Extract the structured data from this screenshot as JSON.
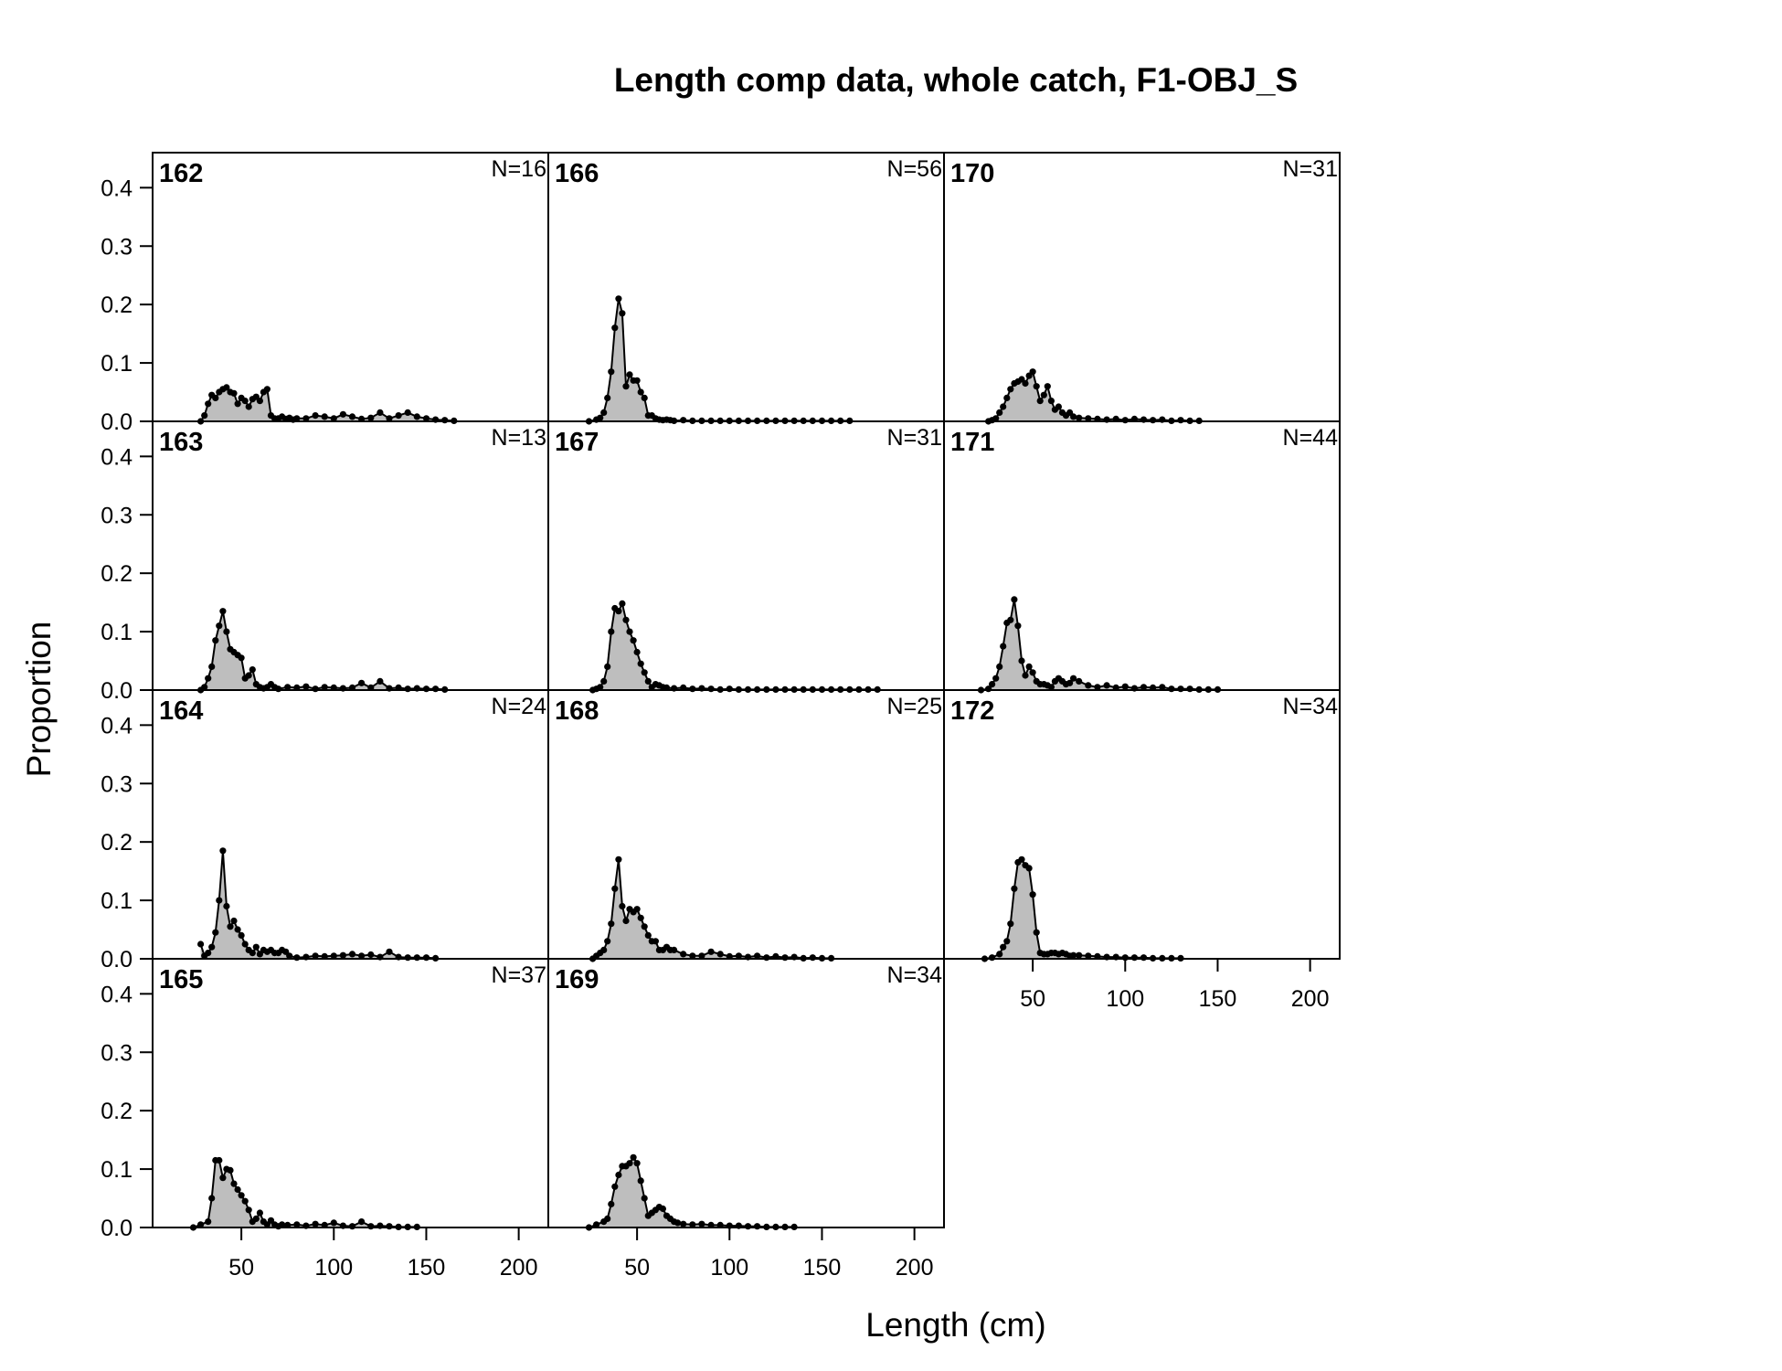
{
  "chart_data": {
    "type": "area",
    "title": "Length comp data, whole catch, F1-OBJ_S",
    "xlabel": "Length (cm)",
    "ylabel": "Proportion",
    "xlim": [
      2,
      216
    ],
    "ylim": [
      0,
      0.46
    ],
    "x_ticks": [
      50,
      100,
      150,
      200
    ],
    "y_ticks": [
      0.0,
      0.1,
      0.2,
      0.3,
      0.4
    ],
    "x_tick_labels": [
      "50",
      "100",
      "150",
      "200"
    ],
    "y_tick_labels": [
      "0.0",
      "0.1",
      "0.2",
      "0.3",
      "0.4"
    ],
    "layout": {
      "columns": 3,
      "rows": 4
    },
    "colors": {
      "fill": "#bebebe",
      "line": "#000000",
      "point": "#000000"
    },
    "grid": false,
    "panels": [
      {
        "label": "162",
        "n_label": "N=16",
        "x": [
          28,
          30,
          32,
          34,
          36,
          38,
          40,
          42,
          44,
          46,
          48,
          50,
          52,
          54,
          56,
          58,
          60,
          62,
          64,
          66,
          68,
          70,
          72,
          74,
          76,
          78,
          80,
          85,
          90,
          95,
          100,
          105,
          110,
          115,
          120,
          125,
          130,
          135,
          140,
          145,
          150,
          155,
          160,
          165
        ],
        "values": [
          0,
          0.01,
          0.03,
          0.045,
          0.04,
          0.05,
          0.055,
          0.058,
          0.05,
          0.048,
          0.03,
          0.04,
          0.035,
          0.025,
          0.038,
          0.042,
          0.035,
          0.05,
          0.055,
          0.01,
          0.005,
          0.005,
          0.008,
          0.004,
          0.006,
          0.003,
          0.005,
          0.005,
          0.01,
          0.008,
          0.005,
          0.012,
          0.008,
          0.004,
          0.006,
          0.015,
          0.005,
          0.01,
          0.015,
          0.008,
          0.005,
          0.003,
          0.002,
          0.001
        ]
      },
      {
        "label": "163",
        "n_label": "N=13",
        "x": [
          28,
          30,
          32,
          34,
          36,
          38,
          40,
          42,
          44,
          46,
          48,
          50,
          52,
          54,
          56,
          58,
          60,
          62,
          64,
          66,
          68,
          70,
          75,
          80,
          85,
          90,
          95,
          100,
          105,
          110,
          115,
          120,
          125,
          130,
          135,
          140,
          145,
          150,
          155,
          160
        ],
        "values": [
          0,
          0.005,
          0.02,
          0.04,
          0.085,
          0.11,
          0.135,
          0.1,
          0.07,
          0.065,
          0.06,
          0.055,
          0.02,
          0.025,
          0.035,
          0.01,
          0.005,
          0.003,
          0.005,
          0.01,
          0.005,
          0.002,
          0.005,
          0.004,
          0.006,
          0.002,
          0.005,
          0.004,
          0.003,
          0.004,
          0.012,
          0.004,
          0.015,
          0.003,
          0.004,
          0.002,
          0.003,
          0.002,
          0.002,
          0.001
        ]
      },
      {
        "label": "164",
        "n_label": "N=24",
        "x": [
          28,
          30,
          32,
          34,
          36,
          38,
          40,
          42,
          44,
          46,
          48,
          50,
          52,
          54,
          56,
          58,
          60,
          62,
          64,
          66,
          68,
          70,
          72,
          74,
          76,
          80,
          85,
          90,
          95,
          100,
          105,
          110,
          115,
          120,
          125,
          130,
          135,
          140,
          145,
          150,
          155
        ],
        "values": [
          0.025,
          0.005,
          0.01,
          0.02,
          0.045,
          0.1,
          0.185,
          0.09,
          0.055,
          0.065,
          0.05,
          0.04,
          0.025,
          0.015,
          0.01,
          0.02,
          0.008,
          0.015,
          0.012,
          0.015,
          0.01,
          0.01,
          0.015,
          0.012,
          0.005,
          0.002,
          0.003,
          0.005,
          0.004,
          0.005,
          0.006,
          0.008,
          0.005,
          0.007,
          0.003,
          0.012,
          0.003,
          0.002,
          0.002,
          0.002,
          0.001
        ]
      },
      {
        "label": "165",
        "n_label": "N=37",
        "x": [
          24,
          28,
          32,
          34,
          36,
          38,
          40,
          42,
          44,
          46,
          48,
          50,
          52,
          54,
          56,
          58,
          60,
          62,
          64,
          66,
          68,
          70,
          72,
          75,
          80,
          85,
          90,
          95,
          100,
          105,
          110,
          115,
          120,
          125,
          130,
          135,
          140,
          145
        ],
        "values": [
          0,
          0.005,
          0.01,
          0.05,
          0.115,
          0.115,
          0.085,
          0.1,
          0.098,
          0.075,
          0.065,
          0.055,
          0.045,
          0.03,
          0.01,
          0.015,
          0.025,
          0.01,
          0.005,
          0.012,
          0.005,
          0.002,
          0.005,
          0.004,
          0.005,
          0.003,
          0.006,
          0.004,
          0.008,
          0.003,
          0.002,
          0.01,
          0.002,
          0.003,
          0.002,
          0.001,
          0.001,
          0.001
        ]
      },
      {
        "label": "166",
        "n_label": "N=56",
        "x": [
          24,
          28,
          30,
          32,
          34,
          36,
          38,
          40,
          42,
          44,
          46,
          48,
          50,
          52,
          54,
          56,
          58,
          60,
          62,
          64,
          66,
          68,
          70,
          75,
          80,
          85,
          90,
          95,
          100,
          105,
          110,
          115,
          120,
          125,
          130,
          135,
          140,
          145,
          150,
          155,
          160,
          165
        ],
        "values": [
          0,
          0.003,
          0.006,
          0.015,
          0.04,
          0.085,
          0.16,
          0.21,
          0.185,
          0.06,
          0.08,
          0.07,
          0.07,
          0.05,
          0.04,
          0.01,
          0.01,
          0.005,
          0.003,
          0.002,
          0.003,
          0.002,
          0.001,
          0.002,
          0.001,
          0.001,
          0.001,
          0.001,
          0.001,
          0.001,
          0.001,
          0.001,
          0.001,
          0.001,
          0.001,
          0.001,
          0.001,
          0.001,
          0.001,
          0.001,
          0.001,
          0.001
        ]
      },
      {
        "label": "167",
        "n_label": "N=31",
        "x": [
          26,
          28,
          30,
          32,
          34,
          36,
          38,
          40,
          42,
          44,
          46,
          48,
          50,
          52,
          54,
          56,
          58,
          60,
          62,
          64,
          66,
          70,
          75,
          80,
          85,
          90,
          95,
          100,
          105,
          110,
          115,
          120,
          125,
          130,
          135,
          140,
          145,
          150,
          155,
          160,
          165,
          170,
          175,
          180
        ],
        "values": [
          0,
          0.002,
          0.005,
          0.015,
          0.04,
          0.1,
          0.14,
          0.135,
          0.148,
          0.12,
          0.1,
          0.085,
          0.065,
          0.045,
          0.03,
          0.015,
          0.005,
          0.01,
          0.008,
          0.005,
          0.004,
          0.003,
          0.004,
          0.002,
          0.003,
          0.002,
          0.001,
          0.002,
          0.001,
          0.001,
          0.001,
          0.001,
          0.001,
          0.001,
          0.001,
          0.001,
          0.001,
          0.001,
          0.001,
          0.001,
          0.001,
          0.001,
          0.001,
          0.001
        ]
      },
      {
        "label": "168",
        "n_label": "N=25",
        "x": [
          26,
          28,
          30,
          32,
          34,
          36,
          38,
          40,
          42,
          44,
          46,
          48,
          50,
          52,
          54,
          56,
          58,
          60,
          62,
          64,
          66,
          68,
          70,
          75,
          80,
          85,
          90,
          95,
          100,
          105,
          110,
          115,
          120,
          125,
          130,
          135,
          140,
          145,
          150,
          155
        ],
        "values": [
          0,
          0.005,
          0.01,
          0.015,
          0.03,
          0.06,
          0.12,
          0.17,
          0.09,
          0.065,
          0.085,
          0.08,
          0.085,
          0.07,
          0.055,
          0.04,
          0.03,
          0.03,
          0.015,
          0.015,
          0.02,
          0.015,
          0.015,
          0.008,
          0.005,
          0.005,
          0.012,
          0.008,
          0.004,
          0.005,
          0.003,
          0.005,
          0.002,
          0.004,
          0.002,
          0.003,
          0.001,
          0.002,
          0.001,
          0.001
        ]
      },
      {
        "label": "169",
        "n_label": "N=34",
        "x": [
          24,
          28,
          32,
          34,
          36,
          38,
          40,
          42,
          44,
          46,
          48,
          50,
          52,
          54,
          56,
          58,
          60,
          62,
          64,
          66,
          68,
          70,
          72,
          75,
          80,
          85,
          90,
          95,
          100,
          105,
          110,
          115,
          120,
          125,
          130,
          135
        ],
        "values": [
          0,
          0.005,
          0.01,
          0.015,
          0.04,
          0.07,
          0.09,
          0.105,
          0.105,
          0.11,
          0.12,
          0.11,
          0.08,
          0.05,
          0.02,
          0.025,
          0.03,
          0.035,
          0.032,
          0.02,
          0.015,
          0.01,
          0.008,
          0.006,
          0.005,
          0.006,
          0.004,
          0.004,
          0.003,
          0.003,
          0.002,
          0.002,
          0.001,
          0.001,
          0.001,
          0.001
        ]
      },
      {
        "label": "170",
        "n_label": "N=31",
        "x": [
          26,
          28,
          30,
          32,
          34,
          36,
          38,
          40,
          42,
          44,
          46,
          48,
          50,
          52,
          54,
          56,
          58,
          60,
          62,
          64,
          66,
          68,
          70,
          72,
          75,
          80,
          85,
          90,
          95,
          100,
          105,
          110,
          115,
          120,
          125,
          130,
          135,
          140
        ],
        "values": [
          0,
          0.002,
          0.005,
          0.015,
          0.025,
          0.04,
          0.055,
          0.065,
          0.068,
          0.072,
          0.065,
          0.078,
          0.085,
          0.06,
          0.035,
          0.045,
          0.06,
          0.035,
          0.02,
          0.025,
          0.015,
          0.01,
          0.015,
          0.008,
          0.006,
          0.005,
          0.004,
          0.003,
          0.004,
          0.002,
          0.004,
          0.003,
          0.002,
          0.003,
          0.001,
          0.002,
          0.001,
          0.001
        ]
      },
      {
        "label": "171",
        "n_label": "N=44",
        "x": [
          22,
          26,
          28,
          30,
          32,
          34,
          36,
          38,
          40,
          42,
          44,
          46,
          48,
          50,
          52,
          54,
          56,
          58,
          60,
          62,
          64,
          66,
          68,
          70,
          72,
          75,
          80,
          85,
          90,
          95,
          100,
          105,
          110,
          115,
          120,
          125,
          130,
          135,
          140,
          145,
          150
        ],
        "values": [
          0,
          0.002,
          0.01,
          0.02,
          0.04,
          0.075,
          0.115,
          0.12,
          0.155,
          0.11,
          0.05,
          0.025,
          0.04,
          0.03,
          0.015,
          0.01,
          0.01,
          0.008,
          0.005,
          0.015,
          0.02,
          0.015,
          0.01,
          0.012,
          0.02,
          0.015,
          0.008,
          0.005,
          0.008,
          0.004,
          0.006,
          0.003,
          0.005,
          0.004,
          0.005,
          0.002,
          0.002,
          0.002,
          0.001,
          0.001,
          0.001
        ]
      },
      {
        "label": "172",
        "n_label": "N=34",
        "x": [
          24,
          28,
          32,
          34,
          36,
          38,
          40,
          42,
          44,
          46,
          48,
          50,
          52,
          54,
          56,
          58,
          60,
          62,
          64,
          66,
          68,
          70,
          72,
          75,
          80,
          85,
          90,
          95,
          100,
          105,
          110,
          115,
          120,
          125,
          130
        ],
        "values": [
          0,
          0.002,
          0.008,
          0.02,
          0.03,
          0.06,
          0.12,
          0.165,
          0.17,
          0.16,
          0.155,
          0.11,
          0.045,
          0.01,
          0.008,
          0.008,
          0.01,
          0.01,
          0.008,
          0.01,
          0.008,
          0.005,
          0.006,
          0.006,
          0.005,
          0.004,
          0.003,
          0.003,
          0.002,
          0.002,
          0.002,
          0.001,
          0.001,
          0.001,
          0.001
        ]
      }
    ]
  }
}
